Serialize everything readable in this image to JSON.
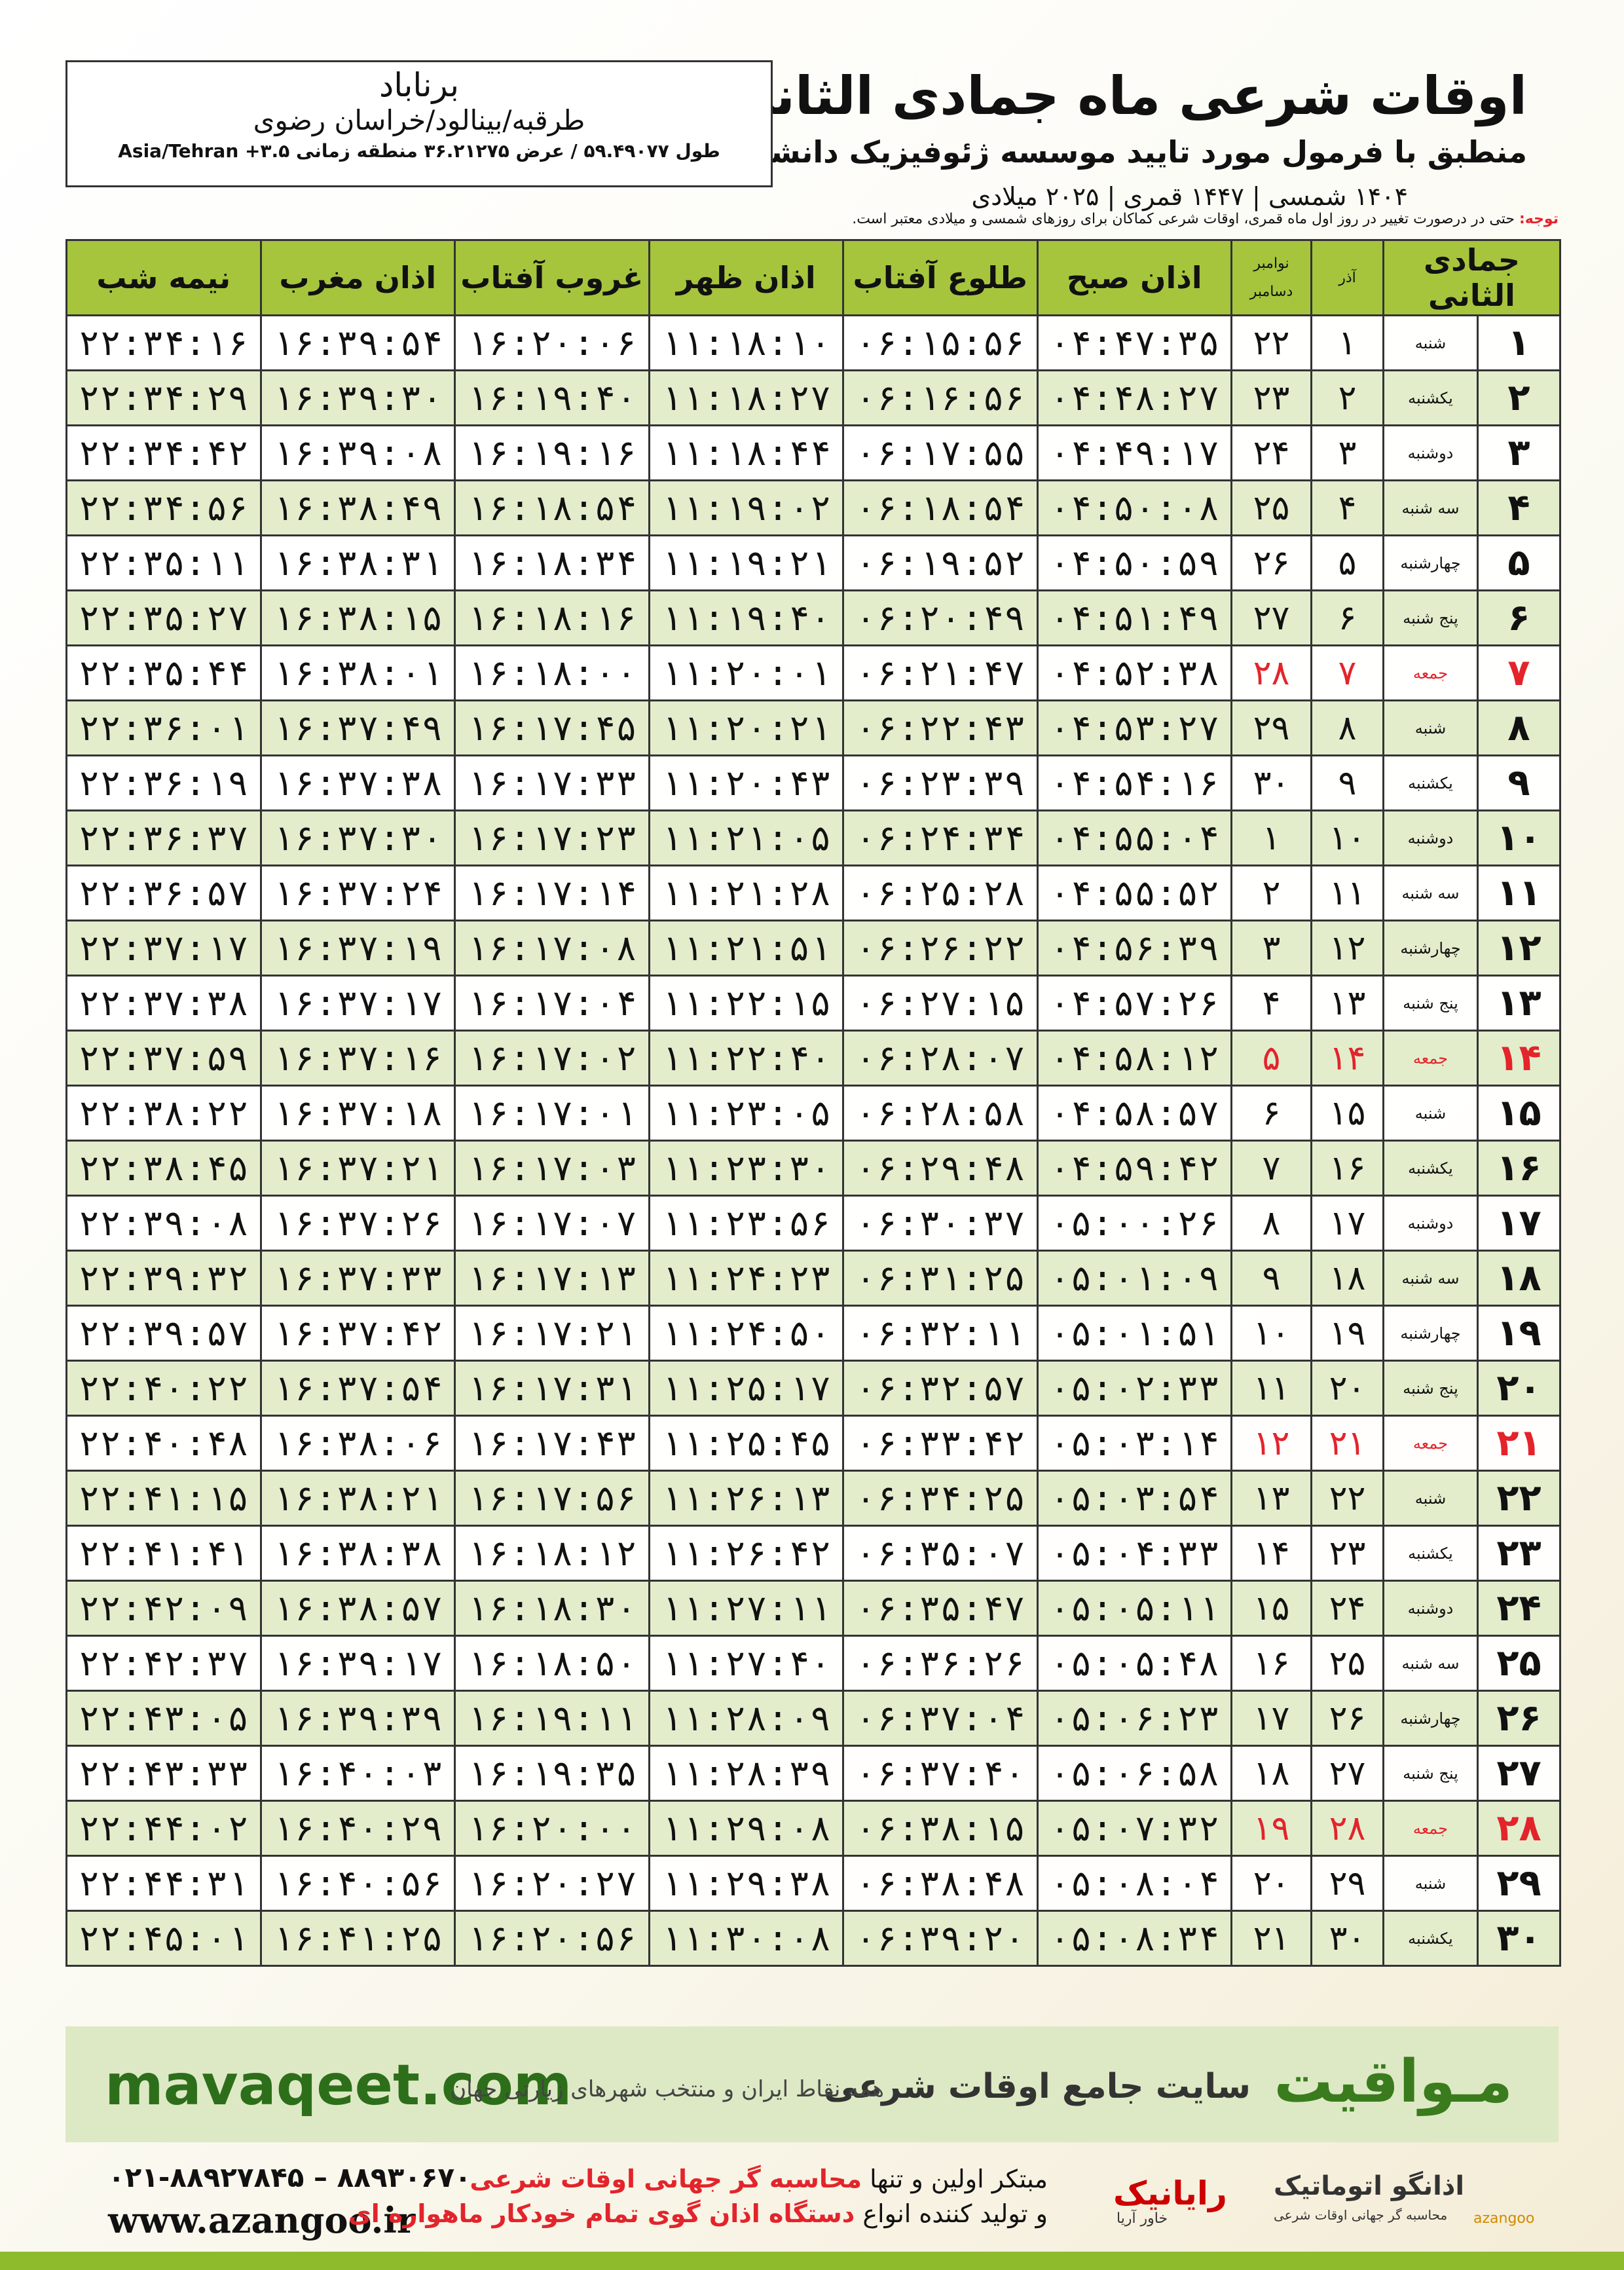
{
  "header": {
    "title": "اوقات شرعی ماه جمادی الثانی",
    "subtitle": "منطبق با فرمول مورد تایید موسسه ژئوفیزیک دانشگاه تهران",
    "years": "۱۴۰۴ شمسی | ۱۴۴۷ قمری | ۲۰۲۵ میلادی"
  },
  "location": {
    "city": "برناباد",
    "region": "طرقبه/بینالود/خراسان رضوی",
    "coords": "طول ۵۹.۴۹۰۷۷ / عرض ۳۶.۲۱۲۷۵ منطقه زمانی ۳.۵+ Asia/Tehran"
  },
  "note": {
    "label": "توجه:",
    "text": "حتی در درصورت تغییر در روز اول ماه قمری، اوقات شرعی کماکان برای روزهای شمسی و میلادی معتبر است."
  },
  "table": {
    "header": [
      "جمادی الثانی",
      "آذر",
      "نوامبر",
      "دسامبر",
      "اذان صبح",
      "طلوع آفتاب",
      "اذان ظهر",
      "غروب آفتاب",
      "اذان مغرب",
      "نیمه شب"
    ],
    "holiday_color": "#e3242b",
    "rows": [
      {
        "cells": [
          "۱",
          "شنبه",
          "۱",
          "۲۲",
          "۰۴:۴۷:۳۵",
          "۰۶:۱۵:۵۶",
          "۱۱:۱۸:۱۰",
          "۱۶:۲۰:۰۶",
          "۱۶:۳۹:۵۴",
          "۲۲:۳۴:۱۶"
        ]
      },
      {
        "cells": [
          "۲",
          "یکشنبه",
          "۲",
          "۲۳",
          "۰۴:۴۸:۲۷",
          "۰۶:۱۶:۵۶",
          "۱۱:۱۸:۲۷",
          "۱۶:۱۹:۴۰",
          "۱۶:۳۹:۳۰",
          "۲۲:۳۴:۲۹"
        ]
      },
      {
        "cells": [
          "۳",
          "دوشنبه",
          "۳",
          "۲۴",
          "۰۴:۴۹:۱۷",
          "۰۶:۱۷:۵۵",
          "۱۱:۱۸:۴۴",
          "۱۶:۱۹:۱۶",
          "۱۶:۳۹:۰۸",
          "۲۲:۳۴:۴۲"
        ]
      },
      {
        "cells": [
          "۴",
          "سه شنبه",
          "۴",
          "۲۵",
          "۰۴:۵۰:۰۸",
          "۰۶:۱۸:۵۴",
          "۱۱:۱۹:۰۲",
          "۱۶:۱۸:۵۴",
          "۱۶:۳۸:۴۹",
          "۲۲:۳۴:۵۶"
        ]
      },
      {
        "cells": [
          "۵",
          "چهارشنبه",
          "۵",
          "۲۶",
          "۰۴:۵۰:۵۹",
          "۰۶:۱۹:۵۲",
          "۱۱:۱۹:۲۱",
          "۱۶:۱۸:۳۴",
          "۱۶:۳۸:۳۱",
          "۲۲:۳۵:۱۱"
        ]
      },
      {
        "cells": [
          "۶",
          "پنج شنبه",
          "۶",
          "۲۷",
          "۰۴:۵۱:۴۹",
          "۰۶:۲۰:۴۹",
          "۱۱:۱۹:۴۰",
          "۱۶:۱۸:۱۶",
          "۱۶:۳۸:۱۵",
          "۲۲:۳۵:۲۷"
        ]
      },
      {
        "cells": [
          "۷",
          "جمعه",
          "۷",
          "۲۸",
          "۰۴:۵۲:۳۸",
          "۰۶:۲۱:۴۷",
          "۱۱:۲۰:۰۱",
          "۱۶:۱۸:۰۰",
          "۱۶:۳۸:۰۱",
          "۲۲:۳۵:۴۴"
        ],
        "holiday": true
      },
      {
        "cells": [
          "۸",
          "شنبه",
          "۸",
          "۲۹",
          "۰۴:۵۳:۲۷",
          "۰۶:۲۲:۴۳",
          "۱۱:۲۰:۲۱",
          "۱۶:۱۷:۴۵",
          "۱۶:۳۷:۴۹",
          "۲۲:۳۶:۰۱"
        ]
      },
      {
        "cells": [
          "۹",
          "یکشنبه",
          "۹",
          "۳۰",
          "۰۴:۵۴:۱۶",
          "۰۶:۲۳:۳۹",
          "۱۱:۲۰:۴۳",
          "۱۶:۱۷:۳۳",
          "۱۶:۳۷:۳۸",
          "۲۲:۳۶:۱۹"
        ]
      },
      {
        "cells": [
          "۱۰",
          "دوشنبه",
          "۱۰",
          "۱",
          "۰۴:۵۵:۰۴",
          "۰۶:۲۴:۳۴",
          "۱۱:۲۱:۰۵",
          "۱۶:۱۷:۲۳",
          "۱۶:۳۷:۳۰",
          "۲۲:۳۶:۳۷"
        ]
      },
      {
        "cells": [
          "۱۱",
          "سه شنبه",
          "۱۱",
          "۲",
          "۰۴:۵۵:۵۲",
          "۰۶:۲۵:۲۸",
          "۱۱:۲۱:۲۸",
          "۱۶:۱۷:۱۴",
          "۱۶:۳۷:۲۴",
          "۲۲:۳۶:۵۷"
        ]
      },
      {
        "cells": [
          "۱۲",
          "چهارشنبه",
          "۱۲",
          "۳",
          "۰۴:۵۶:۳۹",
          "۰۶:۲۶:۲۲",
          "۱۱:۲۱:۵۱",
          "۱۶:۱۷:۰۸",
          "۱۶:۳۷:۱۹",
          "۲۲:۳۷:۱۷"
        ]
      },
      {
        "cells": [
          "۱۳",
          "پنج شنبه",
          "۱۳",
          "۴",
          "۰۴:۵۷:۲۶",
          "۰۶:۲۷:۱۵",
          "۱۱:۲۲:۱۵",
          "۱۶:۱۷:۰۴",
          "۱۶:۳۷:۱۷",
          "۲۲:۳۷:۳۸"
        ]
      },
      {
        "cells": [
          "۱۴",
          "جمعه",
          "۱۴",
          "۵",
          "۰۴:۵۸:۱۲",
          "۰۶:۲۸:۰۷",
          "۱۱:۲۲:۴۰",
          "۱۶:۱۷:۰۲",
          "۱۶:۳۷:۱۶",
          "۲۲:۳۷:۵۹"
        ],
        "holiday": true
      },
      {
        "cells": [
          "۱۵",
          "شنبه",
          "۱۵",
          "۶",
          "۰۴:۵۸:۵۷",
          "۰۶:۲۸:۵۸",
          "۱۱:۲۳:۰۵",
          "۱۶:۱۷:۰۱",
          "۱۶:۳۷:۱۸",
          "۲۲:۳۸:۲۲"
        ]
      },
      {
        "cells": [
          "۱۶",
          "یکشنبه",
          "۱۶",
          "۷",
          "۰۴:۵۹:۴۲",
          "۰۶:۲۹:۴۸",
          "۱۱:۲۳:۳۰",
          "۱۶:۱۷:۰۳",
          "۱۶:۳۷:۲۱",
          "۲۲:۳۸:۴۵"
        ]
      },
      {
        "cells": [
          "۱۷",
          "دوشنبه",
          "۱۷",
          "۸",
          "۰۵:۰۰:۲۶",
          "۰۶:۳۰:۳۷",
          "۱۱:۲۳:۵۶",
          "۱۶:۱۷:۰۷",
          "۱۶:۳۷:۲۶",
          "۲۲:۳۹:۰۸"
        ]
      },
      {
        "cells": [
          "۱۸",
          "سه شنبه",
          "۱۸",
          "۹",
          "۰۵:۰۱:۰۹",
          "۰۶:۳۱:۲۵",
          "۱۱:۲۴:۲۳",
          "۱۶:۱۷:۱۳",
          "۱۶:۳۷:۳۳",
          "۲۲:۳۹:۳۲"
        ]
      },
      {
        "cells": [
          "۱۹",
          "چهارشنبه",
          "۱۹",
          "۱۰",
          "۰۵:۰۱:۵۱",
          "۰۶:۳۲:۱۱",
          "۱۱:۲۴:۵۰",
          "۱۶:۱۷:۲۱",
          "۱۶:۳۷:۴۲",
          "۲۲:۳۹:۵۷"
        ]
      },
      {
        "cells": [
          "۲۰",
          "پنج شنبه",
          "۲۰",
          "۱۱",
          "۰۵:۰۲:۳۳",
          "۰۶:۳۲:۵۷",
          "۱۱:۲۵:۱۷",
          "۱۶:۱۷:۳۱",
          "۱۶:۳۷:۵۴",
          "۲۲:۴۰:۲۲"
        ]
      },
      {
        "cells": [
          "۲۱",
          "جمعه",
          "۲۱",
          "۱۲",
          "۰۵:۰۳:۱۴",
          "۰۶:۳۳:۴۲",
          "۱۱:۲۵:۴۵",
          "۱۶:۱۷:۴۳",
          "۱۶:۳۸:۰۶",
          "۲۲:۴۰:۴۸"
        ],
        "holiday": true
      },
      {
        "cells": [
          "۲۲",
          "شنبه",
          "۲۲",
          "۱۳",
          "۰۵:۰۳:۵۴",
          "۰۶:۳۴:۲۵",
          "۱۱:۲۶:۱۳",
          "۱۶:۱۷:۵۶",
          "۱۶:۳۸:۲۱",
          "۲۲:۴۱:۱۵"
        ]
      },
      {
        "cells": [
          "۲۳",
          "یکشنبه",
          "۲۳",
          "۱۴",
          "۰۵:۰۴:۳۳",
          "۰۶:۳۵:۰۷",
          "۱۱:۲۶:۴۲",
          "۱۶:۱۸:۱۲",
          "۱۶:۳۸:۳۸",
          "۲۲:۴۱:۴۱"
        ]
      },
      {
        "cells": [
          "۲۴",
          "دوشنبه",
          "۲۴",
          "۱۵",
          "۰۵:۰۵:۱۱",
          "۰۶:۳۵:۴۷",
          "۱۱:۲۷:۱۱",
          "۱۶:۱۸:۳۰",
          "۱۶:۳۸:۵۷",
          "۲۲:۴۲:۰۹"
        ]
      },
      {
        "cells": [
          "۲۵",
          "سه شنبه",
          "۲۵",
          "۱۶",
          "۰۵:۰۵:۴۸",
          "۰۶:۳۶:۲۶",
          "۱۱:۲۷:۴۰",
          "۱۶:۱۸:۵۰",
          "۱۶:۳۹:۱۷",
          "۲۲:۴۲:۳۷"
        ]
      },
      {
        "cells": [
          "۲۶",
          "چهارشنبه",
          "۲۶",
          "۱۷",
          "۰۵:۰۶:۲۳",
          "۰۶:۳۷:۰۴",
          "۱۱:۲۸:۰۹",
          "۱۶:۱۹:۱۱",
          "۱۶:۳۹:۳۹",
          "۲۲:۴۳:۰۵"
        ]
      },
      {
        "cells": [
          "۲۷",
          "پنج شنبه",
          "۲۷",
          "۱۸",
          "۰۵:۰۶:۵۸",
          "۰۶:۳۷:۴۰",
          "۱۱:۲۸:۳۹",
          "۱۶:۱۹:۳۵",
          "۱۶:۴۰:۰۳",
          "۲۲:۴۳:۳۳"
        ]
      },
      {
        "cells": [
          "۲۸",
          "جمعه",
          "۲۸",
          "۱۹",
          "۰۵:۰۷:۳۲",
          "۰۶:۳۸:۱۵",
          "۱۱:۲۹:۰۸",
          "۱۶:۲۰:۰۰",
          "۱۶:۴۰:۲۹",
          "۲۲:۴۴:۰۲"
        ],
        "holiday": true
      },
      {
        "cells": [
          "۲۹",
          "شنبه",
          "۲۹",
          "۲۰",
          "۰۵:۰۸:۰۴",
          "۰۶:۳۸:۴۸",
          "۱۱:۲۹:۳۸",
          "۱۶:۲۰:۲۷",
          "۱۶:۴۰:۵۶",
          "۲۲:۴۴:۳۱"
        ]
      },
      {
        "cells": [
          "۳۰",
          "یکشنبه",
          "۳۰",
          "۲۱",
          "۰۵:۰۸:۳۴",
          "۰۶:۳۹:۲۰",
          "۱۱:۳۰:۰۸",
          "۱۶:۲۰:۵۶",
          "۱۶:۴۱:۲۵",
          "۲۲:۴۵:۰۱"
        ]
      }
    ]
  },
  "banner": {
    "site": "mavaqeet.com",
    "brand": "مـواقیت",
    "tagline": "سایت جامع اوقات شرعی",
    "coverage": "همه نقاط ایران و منتخب شهرهای زیارتی جهان"
  },
  "footer": {
    "phones": "۰۲۱-۸۸۹۲۷۸۴۵ – ۸۸۹۳۰۶۷۰",
    "web": "www.azangoo.ir",
    "line1_a": "مبتکر اولین و تنها",
    "line1_b": "محاسبه گر جهانی اوقات شرعی",
    "line2_a": "و تولید کننده انواع",
    "line2_b": "دستگاه اذان گوی تمام خودکار ماهواره ای",
    "logo1": "رایانیک",
    "logo1_sub": "خاور آریا",
    "logo2": "اذانگو اتوماتیک",
    "logo2_sub": "محاسبه گر جهانی اوقات شرعی",
    "logo3": "azangoo"
  }
}
